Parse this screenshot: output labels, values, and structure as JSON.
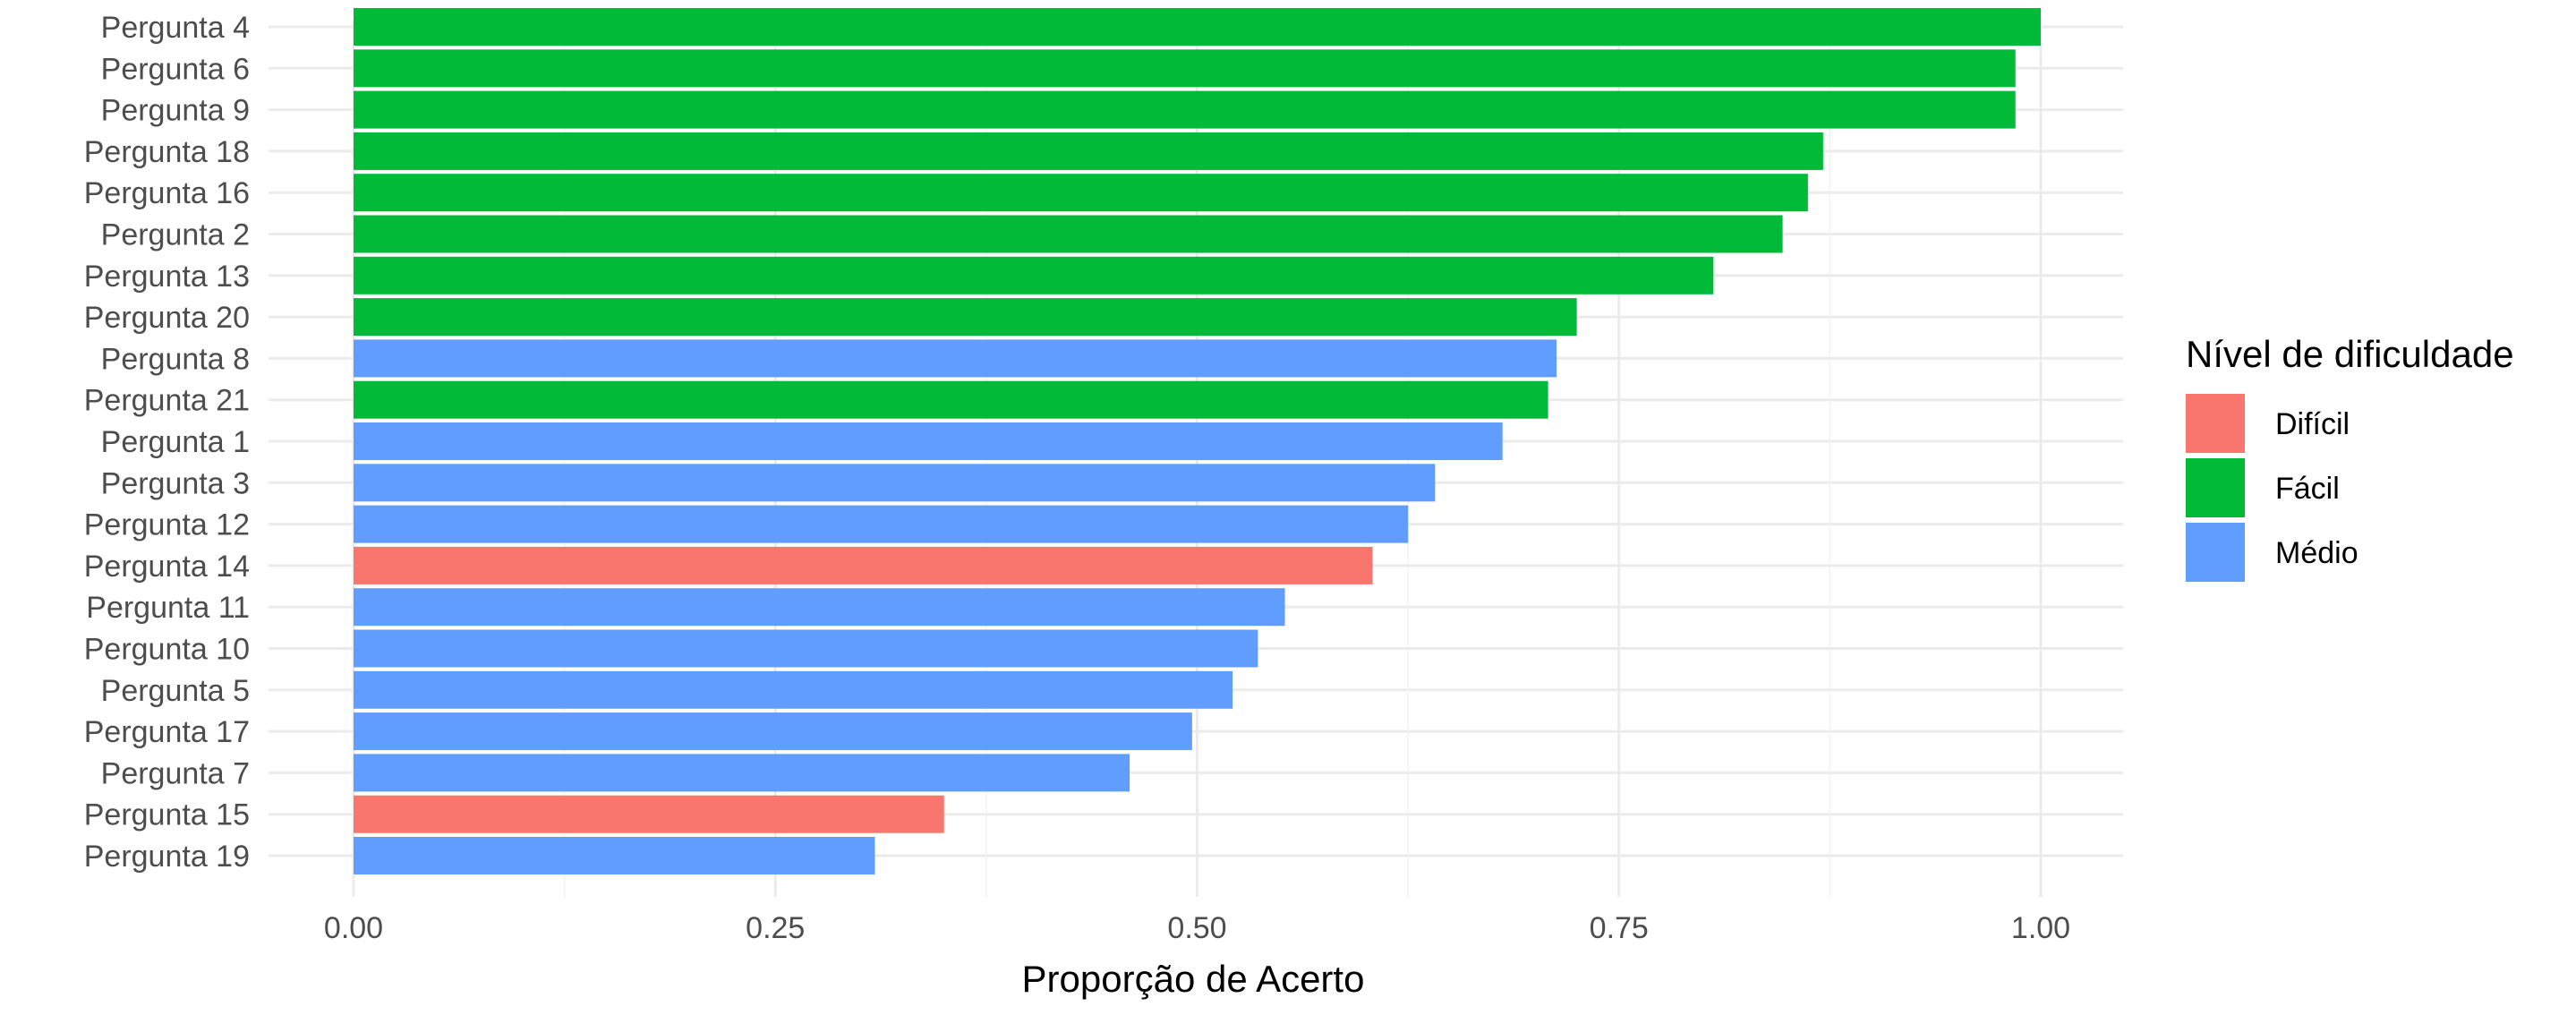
{
  "chart_data": {
    "type": "bar",
    "orientation": "horizontal",
    "xlabel": "Proporção de Acerto",
    "ylabel": "",
    "xlim": [
      0,
      1
    ],
    "x_ticks": [
      "0.00",
      "0.25",
      "0.50",
      "0.75",
      "1.00"
    ],
    "x_tick_values": [
      0,
      0.25,
      0.5,
      0.75,
      1.0
    ],
    "grid": true,
    "legend": {
      "title": "Nível de dificuldade",
      "placement": "right",
      "entries": [
        {
          "key": "Difícil",
          "label": "Difícil",
          "color": "#F8766D"
        },
        {
          "key": "Fácil",
          "label": "Fácil",
          "color": "#00BA38"
        },
        {
          "key": "Médio",
          "label": "Médio",
          "color": "#619CFF"
        }
      ]
    },
    "categories": [
      "Pergunta 4",
      "Pergunta 6",
      "Pergunta 9",
      "Pergunta 18",
      "Pergunta 16",
      "Pergunta 2",
      "Pergunta 13",
      "Pergunta 20",
      "Pergunta 8",
      "Pergunta 21",
      "Pergunta 1",
      "Pergunta 3",
      "Pergunta 12",
      "Pergunta 14",
      "Pergunta 11",
      "Pergunta 10",
      "Pergunta 5",
      "Pergunta 17",
      "Pergunta 7",
      "Pergunta 15",
      "Pergunta 19"
    ],
    "values": [
      1.0,
      0.985,
      0.985,
      0.871,
      0.862,
      0.847,
      0.806,
      0.725,
      0.713,
      0.708,
      0.681,
      0.641,
      0.625,
      0.604,
      0.552,
      0.536,
      0.521,
      0.497,
      0.46,
      0.35,
      0.309
    ],
    "levels": [
      "Fácil",
      "Fácil",
      "Fácil",
      "Fácil",
      "Fácil",
      "Fácil",
      "Fácil",
      "Fácil",
      "Médio",
      "Fácil",
      "Médio",
      "Médio",
      "Médio",
      "Difícil",
      "Médio",
      "Médio",
      "Médio",
      "Médio",
      "Médio",
      "Difícil",
      "Médio"
    ]
  }
}
